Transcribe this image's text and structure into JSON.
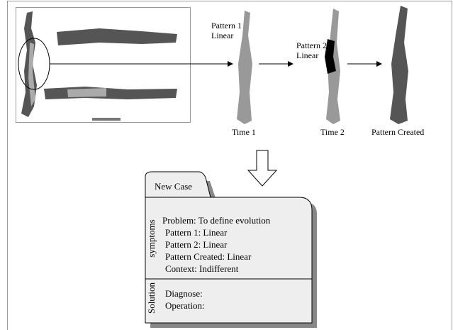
{
  "stages": [
    {
      "pattern": "Pattern 1",
      "shape": "Linear",
      "time": "Time 1"
    },
    {
      "pattern": "Pattern 2",
      "shape": "Linear",
      "time": "Time 2"
    },
    {
      "time": "Pattern Created"
    }
  ],
  "case": {
    "tab": "New Case",
    "symptoms_label": "symptoms",
    "symptoms": [
      "Problem: To define evolution",
      "Pattern 1: Linear",
      "Pattern 2: Linear",
      "Pattern Created: Linear",
      "Context: Indifferent"
    ],
    "solution_label": "Solution",
    "solution": [
      "Diagnose:",
      "Operation:"
    ]
  }
}
